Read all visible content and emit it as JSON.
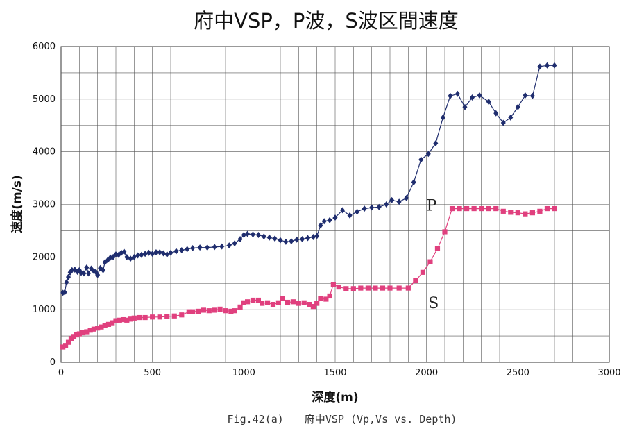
{
  "chart_data": {
    "type": "line",
    "title": "府中VSP，P波，S波区間速度",
    "xlabel": "深度(m)",
    "ylabel": "速度(m/s)",
    "xlim": [
      0,
      3000
    ],
    "ylim": [
      0,
      6000
    ],
    "xticks": [
      0,
      500,
      1000,
      1500,
      2000,
      2500,
      3000
    ],
    "yticks": [
      0,
      1000,
      2000,
      3000,
      4000,
      5000,
      6000
    ],
    "grid": true,
    "legend": "none",
    "series": [
      {
        "name": "P",
        "color": "#1f2d6e",
        "marker": "diamond",
        "points": [
          [
            10,
            1320
          ],
          [
            20,
            1330
          ],
          [
            30,
            1520
          ],
          [
            40,
            1620
          ],
          [
            50,
            1710
          ],
          [
            60,
            1750
          ],
          [
            75,
            1760
          ],
          [
            90,
            1720
          ],
          [
            100,
            1750
          ],
          [
            110,
            1700
          ],
          [
            125,
            1690
          ],
          [
            140,
            1800
          ],
          [
            150,
            1690
          ],
          [
            165,
            1780
          ],
          [
            180,
            1730
          ],
          [
            190,
            1720
          ],
          [
            200,
            1660
          ],
          [
            215,
            1790
          ],
          [
            230,
            1750
          ],
          [
            240,
            1900
          ],
          [
            255,
            1940
          ],
          [
            270,
            1990
          ],
          [
            285,
            2000
          ],
          [
            300,
            2050
          ],
          [
            315,
            2040
          ],
          [
            330,
            2080
          ],
          [
            345,
            2100
          ],
          [
            360,
            2000
          ],
          [
            380,
            1970
          ],
          [
            400,
            2000
          ],
          [
            420,
            2030
          ],
          [
            440,
            2040
          ],
          [
            460,
            2060
          ],
          [
            480,
            2080
          ],
          [
            500,
            2060
          ],
          [
            520,
            2090
          ],
          [
            540,
            2090
          ],
          [
            560,
            2070
          ],
          [
            580,
            2050
          ],
          [
            600,
            2080
          ],
          [
            630,
            2110
          ],
          [
            660,
            2130
          ],
          [
            690,
            2150
          ],
          [
            720,
            2170
          ],
          [
            760,
            2180
          ],
          [
            800,
            2180
          ],
          [
            840,
            2190
          ],
          [
            880,
            2200
          ],
          [
            920,
            2220
          ],
          [
            950,
            2260
          ],
          [
            980,
            2340
          ],
          [
            1000,
            2420
          ],
          [
            1020,
            2440
          ],
          [
            1050,
            2430
          ],
          [
            1080,
            2420
          ],
          [
            1110,
            2390
          ],
          [
            1140,
            2370
          ],
          [
            1170,
            2350
          ],
          [
            1200,
            2320
          ],
          [
            1230,
            2290
          ],
          [
            1260,
            2300
          ],
          [
            1290,
            2330
          ],
          [
            1320,
            2340
          ],
          [
            1350,
            2360
          ],
          [
            1380,
            2380
          ],
          [
            1400,
            2400
          ],
          [
            1420,
            2600
          ],
          [
            1440,
            2680
          ],
          [
            1470,
            2700
          ],
          [
            1500,
            2750
          ],
          [
            1540,
            2890
          ],
          [
            1580,
            2790
          ],
          [
            1620,
            2860
          ],
          [
            1660,
            2920
          ],
          [
            1700,
            2940
          ],
          [
            1740,
            2950
          ],
          [
            1780,
            3000
          ],
          [
            1810,
            3080
          ],
          [
            1850,
            3050
          ],
          [
            1890,
            3120
          ],
          [
            1930,
            3420
          ],
          [
            1970,
            3850
          ],
          [
            2010,
            3960
          ],
          [
            2050,
            4160
          ],
          [
            2090,
            4650
          ],
          [
            2130,
            5060
          ],
          [
            2170,
            5100
          ],
          [
            2210,
            4850
          ],
          [
            2250,
            5030
          ],
          [
            2290,
            5070
          ],
          [
            2340,
            4950
          ],
          [
            2380,
            4730
          ],
          [
            2420,
            4550
          ],
          [
            2460,
            4650
          ],
          [
            2500,
            4850
          ],
          [
            2540,
            5070
          ],
          [
            2580,
            5060
          ],
          [
            2620,
            5620
          ],
          [
            2660,
            5640
          ],
          [
            2700,
            5640
          ]
        ]
      },
      {
        "name": "S",
        "color": "#e0407e",
        "marker": "square",
        "points": [
          [
            10,
            290
          ],
          [
            25,
            320
          ],
          [
            40,
            380
          ],
          [
            55,
            450
          ],
          [
            70,
            490
          ],
          [
            85,
            520
          ],
          [
            100,
            540
          ],
          [
            120,
            560
          ],
          [
            140,
            580
          ],
          [
            160,
            610
          ],
          [
            180,
            630
          ],
          [
            200,
            650
          ],
          [
            220,
            670
          ],
          [
            240,
            700
          ],
          [
            260,
            720
          ],
          [
            280,
            750
          ],
          [
            300,
            790
          ],
          [
            320,
            800
          ],
          [
            340,
            810
          ],
          [
            360,
            800
          ],
          [
            380,
            820
          ],
          [
            400,
            840
          ],
          [
            430,
            850
          ],
          [
            460,
            850
          ],
          [
            500,
            860
          ],
          [
            540,
            860
          ],
          [
            580,
            870
          ],
          [
            620,
            880
          ],
          [
            660,
            900
          ],
          [
            700,
            960
          ],
          [
            720,
            960
          ],
          [
            750,
            970
          ],
          [
            780,
            990
          ],
          [
            810,
            980
          ],
          [
            840,
            990
          ],
          [
            870,
            1010
          ],
          [
            900,
            980
          ],
          [
            930,
            970
          ],
          [
            950,
            980
          ],
          [
            980,
            1050
          ],
          [
            1000,
            1130
          ],
          [
            1020,
            1150
          ],
          [
            1050,
            1180
          ],
          [
            1080,
            1180
          ],
          [
            1100,
            1120
          ],
          [
            1130,
            1130
          ],
          [
            1160,
            1100
          ],
          [
            1190,
            1130
          ],
          [
            1210,
            1210
          ],
          [
            1240,
            1140
          ],
          [
            1270,
            1150
          ],
          [
            1300,
            1120
          ],
          [
            1330,
            1130
          ],
          [
            1360,
            1100
          ],
          [
            1380,
            1060
          ],
          [
            1400,
            1120
          ],
          [
            1420,
            1210
          ],
          [
            1450,
            1200
          ],
          [
            1470,
            1260
          ],
          [
            1490,
            1480
          ],
          [
            1520,
            1430
          ],
          [
            1560,
            1400
          ],
          [
            1600,
            1400
          ],
          [
            1640,
            1410
          ],
          [
            1680,
            1410
          ],
          [
            1720,
            1410
          ],
          [
            1760,
            1410
          ],
          [
            1800,
            1410
          ],
          [
            1850,
            1410
          ],
          [
            1900,
            1410
          ],
          [
            1940,
            1550
          ],
          [
            1980,
            1710
          ],
          [
            2020,
            1910
          ],
          [
            2060,
            2160
          ],
          [
            2100,
            2480
          ],
          [
            2140,
            2920
          ],
          [
            2180,
            2920
          ],
          [
            2220,
            2920
          ],
          [
            2260,
            2920
          ],
          [
            2300,
            2920
          ],
          [
            2340,
            2920
          ],
          [
            2380,
            2920
          ],
          [
            2420,
            2870
          ],
          [
            2460,
            2850
          ],
          [
            2500,
            2840
          ],
          [
            2540,
            2820
          ],
          [
            2580,
            2840
          ],
          [
            2620,
            2870
          ],
          [
            2660,
            2920
          ],
          [
            2700,
            2920
          ]
        ]
      }
    ],
    "annotations": [
      {
        "text": "P",
        "x": 2000,
        "y": 2880
      },
      {
        "text": "S",
        "x": 2010,
        "y": 1030
      }
    ]
  },
  "caption": "Fig.42(a)　　府中VSP (Vp,Vs vs. Depth)"
}
